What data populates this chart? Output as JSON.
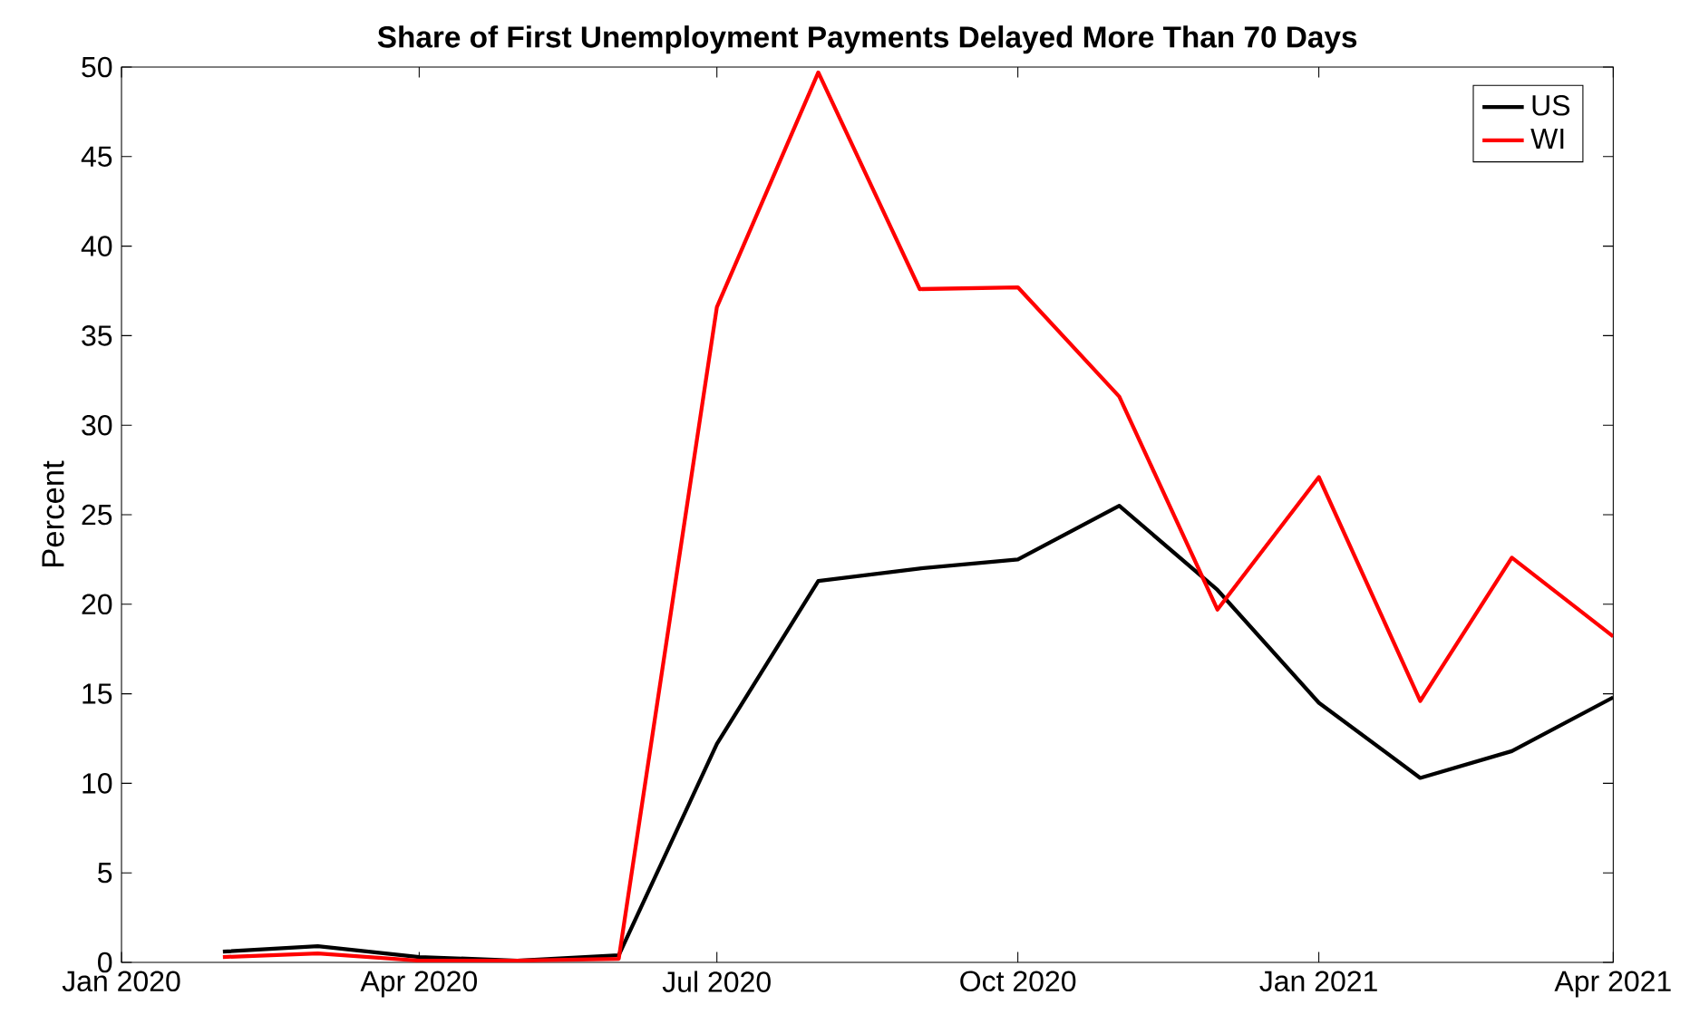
{
  "chart_data": {
    "type": "line",
    "title": "Share of First Unemployment Payments Delayed More Than 70 Days",
    "ylabel": "Percent",
    "x": [
      "2020-02",
      "2020-03",
      "2020-04",
      "2020-05",
      "2020-06",
      "2020-07",
      "2020-08",
      "2020-09",
      "2020-10",
      "2020-11",
      "2020-12",
      "2021-01",
      "2021-02",
      "2021-03",
      "2021-04"
    ],
    "series": [
      {
        "name": "US",
        "color": "#000000",
        "values": [
          0.6,
          0.9,
          0.3,
          0.1,
          0.4,
          12.2,
          21.3,
          22.0,
          22.5,
          25.5,
          20.8,
          14.5,
          10.3,
          11.8,
          14.8
        ]
      },
      {
        "name": "WI",
        "color": "#ff0000",
        "values": [
          0.3,
          0.5,
          0.1,
          0.1,
          0.2,
          36.6,
          49.7,
          37.6,
          37.7,
          31.6,
          19.7,
          27.1,
          14.6,
          22.6,
          18.2
        ]
      }
    ],
    "xlim": [
      "2020-01",
      "2021-04"
    ],
    "ylim": [
      0,
      50
    ],
    "xticks": [
      {
        "value": "2020-01",
        "label": "Jan 2020"
      },
      {
        "value": "2020-04",
        "label": "Apr 2020"
      },
      {
        "value": "2020-07",
        "label": "Jul 2020"
      },
      {
        "value": "2020-10",
        "label": "Oct 2020"
      },
      {
        "value": "2021-01",
        "label": "Jan 2021"
      },
      {
        "value": "2021-04",
        "label": "Apr 2021"
      }
    ],
    "yticks": [
      0,
      5,
      10,
      15,
      20,
      25,
      30,
      35,
      40,
      45,
      50
    ],
    "legend": "top right",
    "grid": false,
    "marker": "none",
    "line_style": "solid"
  }
}
